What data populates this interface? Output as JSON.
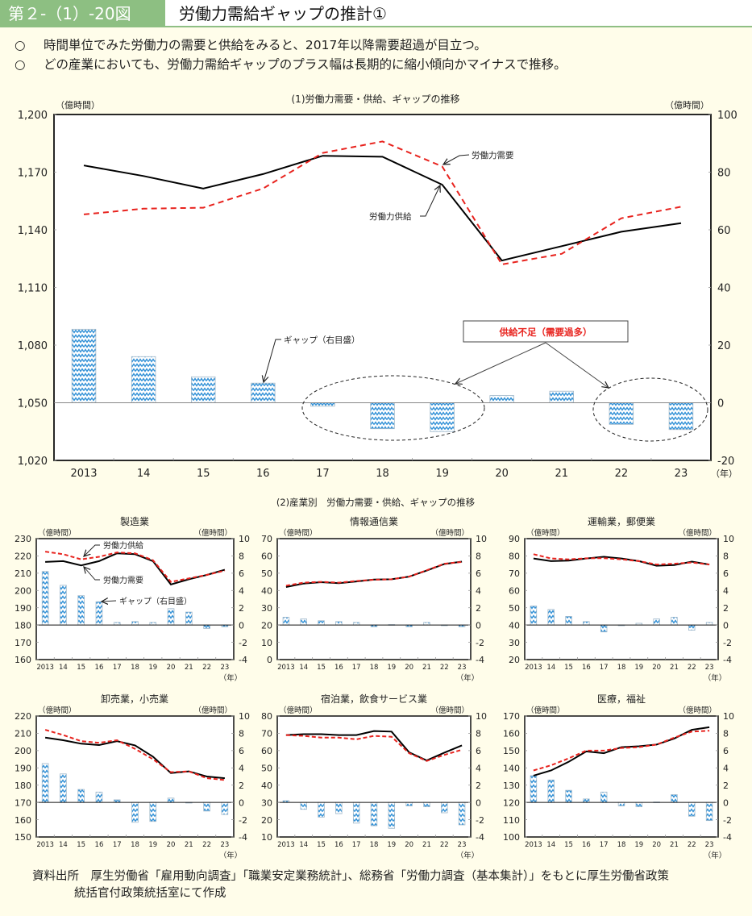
{
  "header": {
    "figure_number": "第２-（1）-20図",
    "title": "労働力需給ギャップの推計①"
  },
  "bullets": [
    {
      "mark": "○",
      "text": "時間単位でみた労働力の需要と供給をみると、2017年以降需要超過が目立つ。"
    },
    {
      "mark": "○",
      "text": "どの産業においても、労働力需給ギャップのプラス幅は長期的に縮小傾向かマイナスで推移。"
    }
  ],
  "colors": {
    "header_green": "#8dbf82",
    "supply_line": "#000000",
    "demand_line": "#e8231e",
    "gap_bar": "#2f8fd6",
    "callout_text": "#e8231e"
  },
  "chart_data": [
    {
      "id": "main",
      "type": "bar+line",
      "title": "(1)労働力需要・供給、ギャップの推移",
      "left_unit": "（億時間）",
      "right_unit": "（億時間）",
      "x_unit": "（年）",
      "categories": [
        "2013",
        "14",
        "15",
        "16",
        "17",
        "18",
        "19",
        "20",
        "21",
        "22",
        "23"
      ],
      "ylim_left": [
        1020,
        1200
      ],
      "yticks_left": [
        1020,
        1050,
        1080,
        1110,
        1140,
        1170,
        1200
      ],
      "ytick_labels_left": [
        "1,020",
        "1,050",
        "1,080",
        "1,110",
        "1,140",
        "1,170",
        "1,200"
      ],
      "ylim_right": [
        -20,
        100
      ],
      "yticks_right": [
        -20,
        0,
        20,
        40,
        60,
        80,
        100
      ],
      "series": [
        {
          "name": "労働力供給",
          "axis": "left",
          "style": "solid-black",
          "values": [
            1173.5,
            1168,
            1161.5,
            1169,
            1178.5,
            1178,
            1163.5,
            1124,
            1131.5,
            1139,
            1143.5
          ]
        },
        {
          "name": "労働力需要",
          "axis": "left",
          "style": "dashed-red",
          "values": [
            1148,
            1151,
            1151.5,
            1161.5,
            1180,
            1186,
            1173,
            1122,
            1127.5,
            1146,
            1152
          ]
        },
        {
          "name": "ギャップ（右目盛）",
          "axis": "right",
          "style": "bar",
          "values": [
            25.5,
            16,
            9,
            6.8,
            -1.2,
            -9,
            -10,
            2.5,
            4,
            -7.5,
            -9.3
          ]
        }
      ],
      "annotations": {
        "demand_label": "労働力需要",
        "supply_label": "労働力供給",
        "gap_label": "ギャップ（右目盛）",
        "callout": "供給不足（需要過多）",
        "highlighted_periods": [
          [
            "17",
            "19"
          ],
          [
            "22",
            "23"
          ]
        ]
      }
    },
    {
      "subtitle": "(2)産業別　労働力需要・供給、ギャップの推移"
    },
    {
      "id": "manufacturing",
      "type": "bar+line",
      "title": "製造業",
      "left_unit": "（億時間）",
      "right_unit": "（億時間）",
      "x_unit": "（年）",
      "categories": [
        "2013",
        "14",
        "15",
        "16",
        "17",
        "18",
        "19",
        "20",
        "21",
        "22",
        "23"
      ],
      "ylim_left": [
        160,
        230
      ],
      "yticks_left": [
        160,
        170,
        180,
        190,
        200,
        210,
        220,
        230
      ],
      "ylim_right": [
        -4,
        10
      ],
      "yticks_right": [
        -4,
        -2,
        0,
        2,
        4,
        6,
        8,
        10
      ],
      "series": [
        {
          "name": "supply",
          "axis": "left",
          "style": "solid-black",
          "values": [
            216.5,
            217,
            214.5,
            217,
            221.5,
            221,
            217,
            203.5,
            206.5,
            209,
            212
          ]
        },
        {
          "name": "demand",
          "axis": "left",
          "style": "dashed-red",
          "values": [
            222.5,
            221,
            218,
            219.5,
            222,
            221.5,
            217.5,
            205,
            207,
            209,
            211.5
          ]
        },
        {
          "name": "gap",
          "axis": "right",
          "style": "bar",
          "values": [
            6.2,
            4.6,
            3.4,
            2.7,
            0.3,
            0.4,
            0.3,
            1.9,
            1.5,
            -0.4,
            -0.2
          ]
        }
      ],
      "annotations": {
        "label_1": "労働力供給",
        "label_2": "労働力需要",
        "label_3": "ギャップ（右目盛）"
      }
    },
    {
      "id": "ict",
      "type": "bar+line",
      "title": "情報通信業",
      "left_unit": "（億時間）",
      "right_unit": "（億時間）",
      "x_unit": "（年）",
      "categories": [
        "2013",
        "14",
        "15",
        "16",
        "17",
        "18",
        "19",
        "20",
        "21",
        "22",
        "23"
      ],
      "ylim_left": [
        0,
        70
      ],
      "yticks_left": [
        0,
        10,
        20,
        30,
        40,
        50,
        60,
        70
      ],
      "ylim_right": [
        -4,
        10
      ],
      "yticks_right": [
        -4,
        -2,
        0,
        2,
        4,
        6,
        8,
        10
      ],
      "series": [
        {
          "name": "supply",
          "axis": "left",
          "style": "solid-black",
          "values": [
            42,
            44,
            44.8,
            44.2,
            45.2,
            46.3,
            46.5,
            48,
            51.5,
            55.3,
            56.7
          ]
        },
        {
          "name": "demand",
          "axis": "left",
          "style": "dashed-red",
          "values": [
            42.8,
            44.5,
            45,
            44.5,
            45.5,
            46.2,
            46.5,
            48,
            51.7,
            55.5,
            56.5
          ]
        },
        {
          "name": "gap",
          "axis": "right",
          "style": "bar",
          "values": [
            0.9,
            0.7,
            0.5,
            0.4,
            0.3,
            -0.2,
            0.05,
            -0.2,
            0.3,
            -0.05,
            -0.2
          ]
        }
      ]
    },
    {
      "id": "transport",
      "type": "bar+line",
      "title": "運輸業，郵便業",
      "left_unit": "（億時間）",
      "right_unit": "（億時間）",
      "x_unit": "（年）",
      "categories": [
        "2013",
        "14",
        "15",
        "16",
        "17",
        "18",
        "19",
        "20",
        "21",
        "22",
        "23"
      ],
      "ylim_left": [
        20,
        90
      ],
      "yticks_left": [
        20,
        30,
        40,
        50,
        60,
        70,
        80,
        90
      ],
      "ylim_right": [
        -4,
        10
      ],
      "yticks_right": [
        -4,
        -2,
        0,
        2,
        4,
        6,
        8,
        10
      ],
      "series": [
        {
          "name": "supply",
          "axis": "left",
          "style": "solid-black",
          "values": [
            78.5,
            77,
            77.3,
            78.5,
            79.5,
            78.5,
            77,
            74.3,
            74.7,
            76.7,
            75
          ]
        },
        {
          "name": "demand",
          "axis": "left",
          "style": "dashed-red",
          "values": [
            81,
            78.5,
            78,
            78.6,
            78.7,
            78,
            77,
            75,
            75.5,
            76.2,
            75
          ]
        },
        {
          "name": "gap",
          "axis": "right",
          "style": "bar",
          "values": [
            2.2,
            1.8,
            1.0,
            0.4,
            -0.8,
            -0.05,
            0.2,
            0.7,
            0.9,
            -0.6,
            0.3
          ]
        }
      ]
    },
    {
      "id": "retail",
      "type": "bar+line",
      "title": "卸売業，小売業",
      "left_unit": "（億時間）",
      "right_unit": "（億時間）",
      "x_unit": "（年）",
      "categories": [
        "2013",
        "14",
        "15",
        "16",
        "17",
        "18",
        "19",
        "20",
        "21",
        "22",
        "23"
      ],
      "ylim_left": [
        150,
        220
      ],
      "yticks_left": [
        150,
        160,
        170,
        180,
        190,
        200,
        210,
        220
      ],
      "ylim_right": [
        -4,
        10
      ],
      "yticks_right": [
        -4,
        -2,
        0,
        2,
        4,
        6,
        8,
        10
      ],
      "series": [
        {
          "name": "supply",
          "axis": "left",
          "style": "solid-black",
          "values": [
            207.5,
            206,
            204,
            203.2,
            205.5,
            203,
            196.5,
            187,
            188,
            185,
            184
          ]
        },
        {
          "name": "demand",
          "axis": "left",
          "style": "dashed-red",
          "values": [
            212,
            209,
            205.5,
            204.5,
            206,
            201,
            195,
            187.5,
            188,
            184,
            183
          ]
        },
        {
          "name": "gap",
          "axis": "right",
          "style": "bar",
          "values": [
            4.5,
            3.3,
            1.5,
            1.2,
            0.3,
            -2.3,
            -2.2,
            0.5,
            -0.05,
            -1.0,
            -1.4
          ]
        }
      ]
    },
    {
      "id": "hospitality",
      "type": "bar+line",
      "title": "宿泊業，飲食サービス業",
      "left_unit": "（億時間）",
      "right_unit": "（億時間）",
      "x_unit": "（年）",
      "categories": [
        "2013",
        "14",
        "15",
        "16",
        "17",
        "18",
        "19",
        "20",
        "21",
        "22",
        "23"
      ],
      "ylim_left": [
        10,
        80
      ],
      "yticks_left": [
        10,
        20,
        30,
        40,
        50,
        60,
        70,
        80
      ],
      "ylim_right": [
        -4,
        10
      ],
      "yticks_right": [
        -4,
        -2,
        0,
        2,
        4,
        6,
        8,
        10
      ],
      "series": [
        {
          "name": "supply",
          "axis": "left",
          "style": "solid-black",
          "values": [
            69,
            69.5,
            69.5,
            69,
            69,
            71.3,
            71,
            59,
            54.3,
            58.8,
            63
          ]
        },
        {
          "name": "demand",
          "axis": "left",
          "style": "dashed-red",
          "values": [
            69,
            68.5,
            67.5,
            67.5,
            66.5,
            68.5,
            68,
            58.5,
            54,
            57.5,
            60.5
          ]
        },
        {
          "name": "gap",
          "axis": "right",
          "style": "bar",
          "values": [
            0.2,
            -0.8,
            -1.7,
            -1.3,
            -2.4,
            -2.7,
            -3.0,
            -0.4,
            -0.5,
            -1.2,
            -2.6
          ]
        }
      ]
    },
    {
      "id": "healthcare",
      "type": "bar+line",
      "title": "医療，福祉",
      "left_unit": "（億時間）",
      "right_unit": "（億時間）",
      "x_unit": "（年）",
      "categories": [
        "2013",
        "14",
        "15",
        "16",
        "17",
        "18",
        "19",
        "20",
        "21",
        "22",
        "23"
      ],
      "ylim_left": [
        100,
        170
      ],
      "yticks_left": [
        100,
        110,
        120,
        130,
        140,
        150,
        160,
        170
      ],
      "ylim_right": [
        -4,
        10
      ],
      "yticks_right": [
        -4,
        -2,
        0,
        2,
        4,
        6,
        8,
        10
      ],
      "series": [
        {
          "name": "supply",
          "axis": "left",
          "style": "solid-black",
          "values": [
            135.5,
            138.5,
            143.5,
            149.5,
            148.5,
            152,
            152.5,
            153.5,
            157,
            162,
            163.5
          ]
        },
        {
          "name": "demand",
          "axis": "left",
          "style": "dashed-red",
          "values": [
            138.5,
            141.5,
            145.5,
            150,
            150,
            151.5,
            152,
            153.5,
            157.5,
            161,
            161.5
          ]
        },
        {
          "name": "gap",
          "axis": "right",
          "style": "bar",
          "values": [
            3.1,
            2.6,
            1.4,
            0.4,
            1.2,
            -0.4,
            -0.5,
            0.05,
            0.9,
            -1.6,
            -2.1
          ]
        }
      ]
    }
  ],
  "source": {
    "line1": "資料出所　厚生労働省「雇用動向調査」「職業安定業務統計」、総務省「労働力調査（基本集計）」をもとに厚生労働省政策",
    "line2": "統括官付政策統括室にて作成"
  }
}
